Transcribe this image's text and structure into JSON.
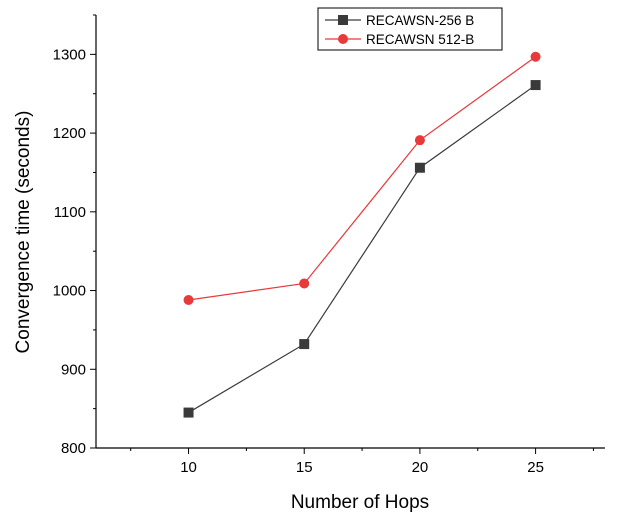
{
  "chart_data": {
    "type": "line",
    "title": "",
    "xlabel": "Number of Hops",
    "ylabel": "Convergence time (seconds)",
    "x": [
      10,
      15,
      20,
      25
    ],
    "xticks": [
      10,
      15,
      20,
      25
    ],
    "xlim": [
      6,
      28
    ],
    "yticks": [
      800,
      900,
      1000,
      1100,
      1200,
      1300
    ],
    "ylim": [
      800,
      1350
    ],
    "grid": false,
    "legend_position": "top-right",
    "series": [
      {
        "name": "RECAWSN-256 B",
        "values": [
          845,
          932,
          1156,
          1261
        ],
        "color": "#3a3a3a",
        "marker": "square"
      },
      {
        "name": "RECAWSN 512-B",
        "values": [
          988,
          1009,
          1191,
          1297
        ],
        "color": "#e8393b",
        "marker": "circle"
      }
    ]
  }
}
